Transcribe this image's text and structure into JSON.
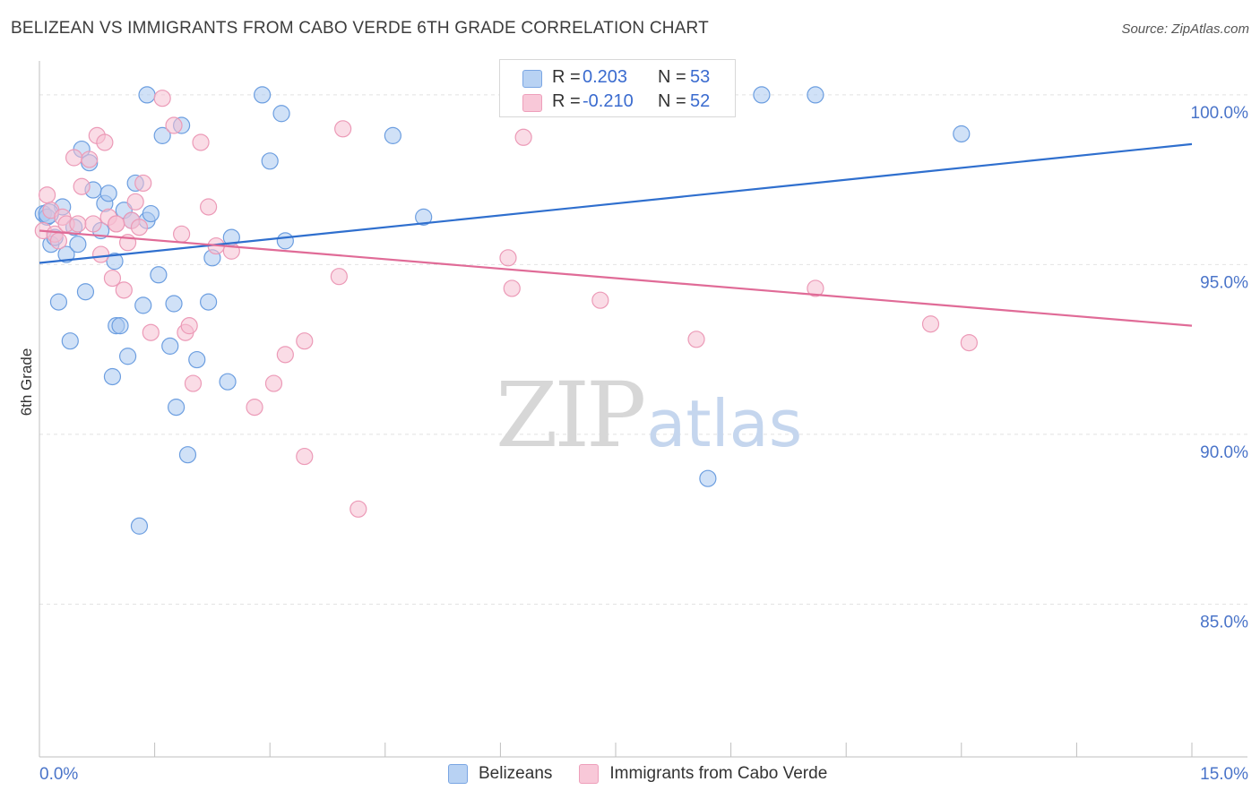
{
  "title": "BELIZEAN VS IMMIGRANTS FROM CABO VERDE 6TH GRADE CORRELATION CHART",
  "source": "Source: ZipAtlas.com",
  "watermark": {
    "zip": "ZIP",
    "atlas": "atlas"
  },
  "legend": {
    "rows": [
      {
        "r_label": "R =",
        "r_value": "0.203",
        "n_label": "N =",
        "n_value": "53"
      },
      {
        "r_label": "R =",
        "r_value": "-0.210",
        "n_label": "N =",
        "n_value": "52"
      }
    ]
  },
  "bottom_legend": {
    "series1": "Belizeans",
    "series2": "Immigrants from Cabo Verde"
  },
  "chart_data": {
    "type": "scatter",
    "xlabel": "",
    "ylabel": "6th Grade",
    "xlim": [
      0,
      15
    ],
    "ylim": [
      80.5,
      101
    ],
    "x_tick_labels": [
      {
        "value": 0,
        "label": "0.0%"
      },
      {
        "value": 15,
        "label": "15.0%"
      }
    ],
    "y_tick_labels": [
      {
        "value": 100,
        "label": "100.0%"
      },
      {
        "value": 95,
        "label": "95.0%"
      },
      {
        "value": 90,
        "label": "90.0%"
      },
      {
        "value": 85,
        "label": "85.0%"
      }
    ],
    "grid": true,
    "legend_position": "top-center",
    "colors": {
      "blue_fill": "#a9c8f0",
      "blue_stroke": "#6c9ee0",
      "blue_line": "#2f6fce",
      "pink_fill": "#f5bfd1",
      "pink_stroke": "#ec9ab7",
      "pink_line": "#e06b97"
    },
    "series": [
      {
        "name": "Belizeans",
        "color": "#6c9ee0",
        "trend": {
          "x": [
            0,
            15
          ],
          "y": [
            95.05,
            98.55
          ]
        },
        "points": [
          [
            0.05,
            96.5
          ],
          [
            0.1,
            96.4
          ],
          [
            0.15,
            95.6
          ],
          [
            0.2,
            95.8
          ],
          [
            0.25,
            93.9
          ],
          [
            0.3,
            96.7
          ],
          [
            0.35,
            95.3
          ],
          [
            0.4,
            92.75
          ],
          [
            0.45,
            96.1
          ],
          [
            0.5,
            95.6
          ],
          [
            0.55,
            98.4
          ],
          [
            0.6,
            94.2
          ],
          [
            0.65,
            98.0
          ],
          [
            0.7,
            97.2
          ],
          [
            0.8,
            96.0
          ],
          [
            0.85,
            96.8
          ],
          [
            0.9,
            97.1
          ],
          [
            0.95,
            91.7
          ],
          [
            0.98,
            95.1
          ],
          [
            1.0,
            93.2
          ],
          [
            1.05,
            93.2
          ],
          [
            1.1,
            96.6
          ],
          [
            1.15,
            92.3
          ],
          [
            1.2,
            96.3
          ],
          [
            1.25,
            97.4
          ],
          [
            1.3,
            87.3
          ],
          [
            1.35,
            93.8
          ],
          [
            1.4,
            96.3
          ],
          [
            1.4,
            100.0
          ],
          [
            1.45,
            96.5
          ],
          [
            1.55,
            94.7
          ],
          [
            1.6,
            98.8
          ],
          [
            1.7,
            92.6
          ],
          [
            1.75,
            93.85
          ],
          [
            1.78,
            90.8
          ],
          [
            1.85,
            99.1
          ],
          [
            1.93,
            89.4
          ],
          [
            2.05,
            92.2
          ],
          [
            2.2,
            93.9
          ],
          [
            2.25,
            95.2
          ],
          [
            2.45,
            91.55
          ],
          [
            2.5,
            95.8
          ],
          [
            2.9,
            100.0
          ],
          [
            3.0,
            98.05
          ],
          [
            3.15,
            99.45
          ],
          [
            3.2,
            95.7
          ],
          [
            4.6,
            98.8
          ],
          [
            5.0,
            96.4
          ],
          [
            8.7,
            88.7
          ],
          [
            9.4,
            100.0
          ],
          [
            10.1,
            100.0
          ],
          [
            12.0,
            98.85
          ],
          [
            0.12,
            96.5
          ]
        ]
      },
      {
        "name": "Immigrants from Cabo Verde",
        "color": "#ec9ab7",
        "trend": {
          "x": [
            0,
            15
          ],
          "y": [
            96.0,
            93.2
          ]
        },
        "points": [
          [
            0.05,
            96.0
          ],
          [
            0.1,
            97.05
          ],
          [
            0.15,
            96.6
          ],
          [
            0.2,
            95.9
          ],
          [
            0.3,
            96.4
          ],
          [
            0.35,
            96.2
          ],
          [
            0.45,
            98.15
          ],
          [
            0.5,
            96.2
          ],
          [
            0.55,
            97.3
          ],
          [
            0.65,
            98.1
          ],
          [
            0.7,
            96.2
          ],
          [
            0.75,
            98.8
          ],
          [
            0.8,
            95.3
          ],
          [
            0.85,
            98.6
          ],
          [
            0.9,
            96.4
          ],
          [
            0.95,
            94.6
          ],
          [
            1.0,
            96.2
          ],
          [
            1.1,
            94.25
          ],
          [
            1.15,
            95.65
          ],
          [
            1.2,
            96.3
          ],
          [
            1.25,
            96.85
          ],
          [
            1.3,
            96.1
          ],
          [
            1.35,
            97.4
          ],
          [
            1.45,
            93.0
          ],
          [
            1.6,
            99.9
          ],
          [
            1.75,
            99.1
          ],
          [
            1.85,
            95.9
          ],
          [
            1.9,
            93.0
          ],
          [
            1.95,
            93.2
          ],
          [
            2.0,
            91.5
          ],
          [
            2.1,
            98.6
          ],
          [
            2.2,
            96.7
          ],
          [
            2.3,
            95.55
          ],
          [
            2.5,
            95.4
          ],
          [
            2.8,
            90.8
          ],
          [
            3.05,
            91.5
          ],
          [
            3.2,
            92.35
          ],
          [
            3.45,
            92.75
          ],
          [
            3.45,
            89.35
          ],
          [
            3.9,
            94.65
          ],
          [
            3.95,
            99.0
          ],
          [
            4.15,
            87.8
          ],
          [
            6.1,
            95.2
          ],
          [
            6.15,
            94.3
          ],
          [
            6.3,
            98.75
          ],
          [
            7.3,
            93.95
          ],
          [
            8.55,
            92.8
          ],
          [
            10.1,
            94.3
          ],
          [
            11.6,
            93.25
          ],
          [
            12.1,
            92.7
          ],
          [
            0.25,
            95.7
          ],
          [
            1.0,
            96.2
          ]
        ]
      }
    ]
  }
}
